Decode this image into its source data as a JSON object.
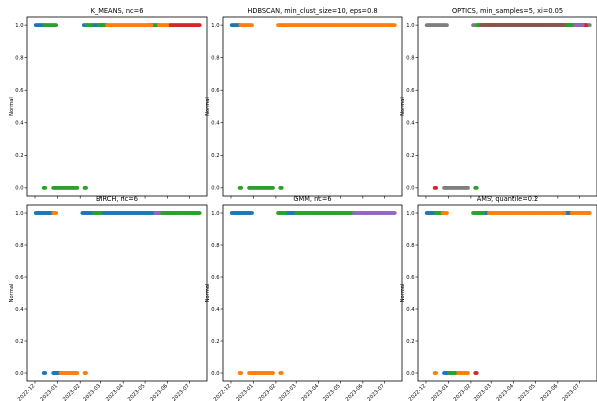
{
  "chart_data": [
    {
      "type": "scatter",
      "title": "K_MEANS, nc=6",
      "ylabel": "Normal",
      "ylim": [
        -0.05,
        1.05
      ],
      "xlim": [
        "2022-11-20",
        "2023-07-25"
      ],
      "yticks": [
        "0.0",
        "0.2",
        "0.4",
        "0.6",
        "0.8",
        "1.0"
      ],
      "xticks": [],
      "series": [
        {
          "color": "#1f77b4",
          "y": 1.0,
          "ranges": [
            [
              "2022-12-02",
              "2022-12-14"
            ],
            [
              "2023-02-06",
              "2023-02-10"
            ],
            [
              "2023-02-16",
              "2023-03-10"
            ],
            [
              "2023-05-05",
              "2023-05-15"
            ]
          ]
        },
        {
          "color": "#2ca02c",
          "y": 1.0,
          "ranges": [
            [
              "2022-12-14",
              "2022-12-30"
            ],
            [
              "2023-02-10",
              "2023-02-16"
            ],
            [
              "2023-02-26",
              "2023-03-06"
            ],
            [
              "2023-05-16",
              "2023-05-20"
            ]
          ]
        },
        {
          "color": "#ff7f0e",
          "y": 1.0,
          "ranges": [
            [
              "2023-03-10",
              "2023-05-10"
            ],
            [
              "2023-05-20",
              "2023-06-05"
            ]
          ]
        },
        {
          "color": "#d62728",
          "y": 1.0,
          "ranges": [
            [
              "2023-06-05",
              "2023-07-15"
            ]
          ]
        },
        {
          "color": "#2ca02c",
          "y": 0.0,
          "ranges": [
            [
              "2022-12-13",
              "2022-12-15"
            ],
            [
              "2022-12-26",
              "2023-01-28"
            ],
            [
              "2023-02-07",
              "2023-02-09"
            ]
          ]
        }
      ]
    },
    {
      "type": "scatter",
      "title": "HDBSCAN, min_clust_size=10, eps=0.8",
      "ylabel": "Normal",
      "ylim": [
        -0.05,
        1.05
      ],
      "xlim": [
        "2022-11-20",
        "2023-07-25"
      ],
      "yticks": [
        "0.0",
        "0.2",
        "0.4",
        "0.6",
        "0.8",
        "1.0"
      ],
      "xticks": [],
      "series": [
        {
          "color": "#1f77b4",
          "y": 1.0,
          "ranges": [
            [
              "2022-12-02",
              "2022-12-14"
            ]
          ]
        },
        {
          "color": "#ff7f0e",
          "y": 1.0,
          "ranges": [
            [
              "2022-12-14",
              "2022-12-30"
            ],
            [
              "2023-02-04",
              "2023-07-15"
            ]
          ]
        },
        {
          "color": "#2ca02c",
          "y": 0.0,
          "ranges": [
            [
              "2022-12-13",
              "2022-12-15"
            ],
            [
              "2022-12-26",
              "2023-01-28"
            ],
            [
              "2023-02-07",
              "2023-02-09"
            ]
          ]
        }
      ]
    },
    {
      "type": "scatter",
      "title": "OPTICS, min_samples=5, xi=0.05",
      "ylabel": "Normal",
      "ylim": [
        -0.05,
        1.05
      ],
      "xlim": [
        "2022-11-20",
        "2023-07-25"
      ],
      "yticks": [
        "0.0",
        "0.2",
        "0.4",
        "0.6",
        "0.8",
        "1.0"
      ],
      "xticks": [],
      "series": [
        {
          "color": "#7f7f7f",
          "y": 1.0,
          "ranges": [
            [
              "2022-12-02",
              "2022-12-30"
            ],
            [
              "2023-02-04",
              "2023-07-15"
            ]
          ]
        },
        {
          "color": "#d62728",
          "y": 1.0,
          "ranges": [
            [
              "2023-02-20",
              "2023-07-10"
            ]
          ]
        },
        {
          "color": "#9467bd",
          "y": 1.0,
          "ranges": [
            [
              "2023-03-01",
              "2023-07-05"
            ]
          ]
        },
        {
          "color": "#2ca02c",
          "y": 1.0,
          "ranges": [
            [
              "2023-02-10",
              "2023-06-20"
            ]
          ]
        },
        {
          "color": "#8c564b",
          "y": 1.0,
          "ranges": [
            [
              "2023-02-15",
              "2023-06-10"
            ]
          ]
        },
        {
          "color": "#d62728",
          "y": 0.0,
          "ranges": [
            [
              "2022-12-13",
              "2022-12-15"
            ]
          ]
        },
        {
          "color": "#7f7f7f",
          "y": 0.0,
          "ranges": [
            [
              "2022-12-26",
              "2023-01-28"
            ]
          ]
        },
        {
          "color": "#2ca02c",
          "y": 0.0,
          "ranges": [
            [
              "2023-02-07",
              "2023-02-09"
            ]
          ]
        }
      ]
    },
    {
      "type": "scatter",
      "title": "BIRCH, nc=6",
      "ylabel": "Normal",
      "ylim": [
        -0.05,
        1.05
      ],
      "xlim": [
        "2022-11-20",
        "2023-07-25"
      ],
      "yticks": [
        "0.0",
        "0.2",
        "0.4",
        "0.6",
        "0.8",
        "1.0"
      ],
      "xticks": [
        "2022-12",
        "2023-01",
        "2023-02",
        "2023-03",
        "2023-04",
        "2023-05",
        "2023-06",
        "2023-07"
      ],
      "series": [
        {
          "color": "#1f77b4",
          "y": 1.0,
          "ranges": [
            [
              "2022-12-02",
              "2022-12-26"
            ],
            [
              "2023-02-04",
              "2023-02-20"
            ],
            [
              "2023-03-01",
              "2023-05-20"
            ]
          ]
        },
        {
          "color": "#ff7f0e",
          "y": 1.0,
          "ranges": [
            [
              "2022-12-26",
              "2022-12-30"
            ]
          ]
        },
        {
          "color": "#2ca02c",
          "y": 1.0,
          "ranges": [
            [
              "2023-02-20",
              "2023-03-01"
            ],
            [
              "2023-05-20",
              "2023-07-15"
            ]
          ]
        },
        {
          "color": "#9467bd",
          "y": 1.0,
          "ranges": [
            [
              "2023-05-15",
              "2023-05-20"
            ]
          ]
        },
        {
          "color": "#1f77b4",
          "y": 0.0,
          "ranges": [
            [
              "2022-12-13",
              "2022-12-15"
            ],
            [
              "2022-12-26",
              "2023-01-05"
            ]
          ]
        },
        {
          "color": "#ff7f0e",
          "y": 0.0,
          "ranges": [
            [
              "2023-01-05",
              "2023-01-28"
            ],
            [
              "2023-02-07",
              "2023-02-09"
            ]
          ]
        }
      ]
    },
    {
      "type": "scatter",
      "title": "GMM, nc=6",
      "ylabel": "Normal",
      "ylim": [
        -0.05,
        1.05
      ],
      "xlim": [
        "2022-11-20",
        "2023-07-25"
      ],
      "yticks": [
        "0.0",
        "0.2",
        "0.4",
        "0.6",
        "0.8",
        "1.0"
      ],
      "xticks": [
        "2022-12",
        "2023-01",
        "2023-02",
        "2023-03",
        "2023-04",
        "2023-05",
        "2023-06",
        "2023-07"
      ],
      "series": [
        {
          "color": "#1f77b4",
          "y": 1.0,
          "ranges": [
            [
              "2022-12-02",
              "2022-12-30"
            ],
            [
              "2023-02-14",
              "2023-03-01"
            ]
          ]
        },
        {
          "color": "#2ca02c",
          "y": 1.0,
          "ranges": [
            [
              "2023-02-04",
              "2023-02-14"
            ],
            [
              "2023-03-01",
              "2023-05-20"
            ]
          ]
        },
        {
          "color": "#9467bd",
          "y": 1.0,
          "ranges": [
            [
              "2023-05-20",
              "2023-07-15"
            ]
          ]
        },
        {
          "color": "#ff7f0e",
          "y": 0.0,
          "ranges": [
            [
              "2022-12-13",
              "2022-12-15"
            ],
            [
              "2022-12-26",
              "2023-01-28"
            ],
            [
              "2023-02-07",
              "2023-02-09"
            ]
          ]
        }
      ]
    },
    {
      "type": "scatter",
      "title": "AMS, quantile=0.2",
      "ylabel": "Normal",
      "ylim": [
        -0.05,
        1.05
      ],
      "xlim": [
        "2022-11-20",
        "2023-07-25"
      ],
      "yticks": [
        "0.0",
        "0.2",
        "0.4",
        "0.6",
        "0.8",
        "1.0"
      ],
      "xticks": [
        "2022-12",
        "2023-01",
        "2023-02",
        "2023-03",
        "2023-04",
        "2023-05",
        "2023-06",
        "2023-07"
      ],
      "series": [
        {
          "color": "#1f77b4",
          "y": 1.0,
          "ranges": [
            [
              "2022-12-02",
              "2022-12-14"
            ],
            [
              "2023-02-18",
              "2023-02-26"
            ],
            [
              "2023-06-10",
              "2023-06-20"
            ]
          ]
        },
        {
          "color": "#2ca02c",
          "y": 1.0,
          "ranges": [
            [
              "2022-12-14",
              "2022-12-24"
            ],
            [
              "2023-02-04",
              "2023-02-18"
            ]
          ]
        },
        {
          "color": "#ff7f0e",
          "y": 1.0,
          "ranges": [
            [
              "2022-12-24",
              "2022-12-30"
            ],
            [
              "2023-02-26",
              "2023-06-10"
            ],
            [
              "2023-06-20",
              "2023-07-15"
            ]
          ]
        },
        {
          "color": "#ff7f0e",
          "y": 0.0,
          "ranges": [
            [
              "2022-12-13",
              "2022-12-15"
            ],
            [
              "2023-01-10",
              "2023-01-28"
            ]
          ]
        },
        {
          "color": "#1f77b4",
          "y": 0.0,
          "ranges": [
            [
              "2022-12-26",
              "2023-01-02"
            ]
          ]
        },
        {
          "color": "#2ca02c",
          "y": 0.0,
          "ranges": [
            [
              "2023-01-02",
              "2023-01-10"
            ]
          ]
        },
        {
          "color": "#d62728",
          "y": 0.0,
          "ranges": [
            [
              "2023-02-07",
              "2023-02-09"
            ]
          ]
        }
      ]
    }
  ]
}
